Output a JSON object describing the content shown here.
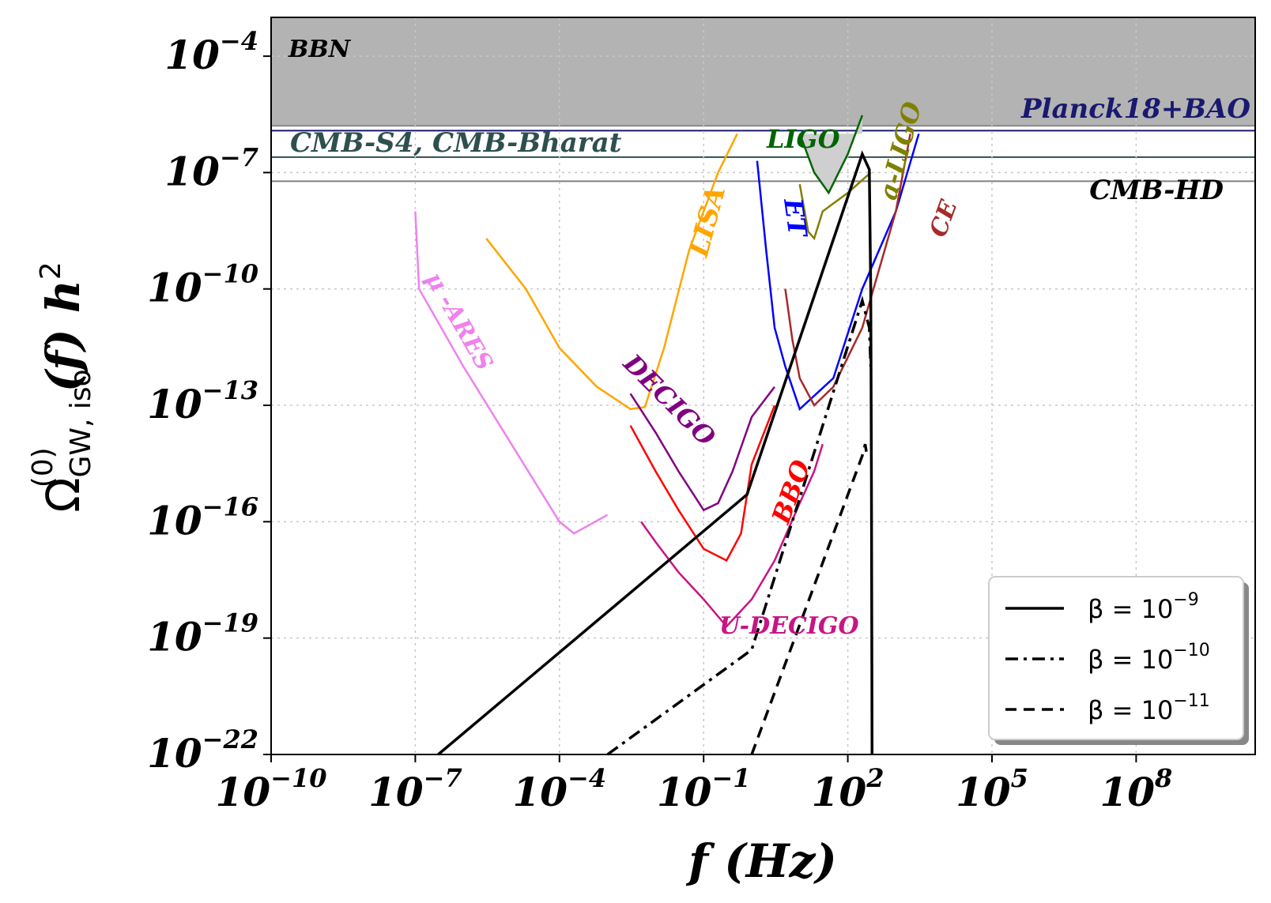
{
  "chart_data": {
    "type": "line",
    "xlabel": "f (Hz)",
    "ylabel_main": "Ω",
    "ylabel_sup": "(0)",
    "ylabel_sub": "GW, iso",
    "ylabel_tail": "(f) h",
    "ylabel_pow": "2",
    "x_scale": "log",
    "y_scale": "log",
    "xlim": [
      1e-10,
      30000000000.0
    ],
    "ylim": [
      1e-22,
      0.001
    ],
    "grid": true,
    "legend_position": "lower-right",
    "x_ticks": [
      {
        "base": "10",
        "exp": "−10",
        "value": 1e-10
      },
      {
        "base": "10",
        "exp": "−7",
        "value": 1e-07
      },
      {
        "base": "10",
        "exp": "−4",
        "value": 0.0001
      },
      {
        "base": "10",
        "exp": "−1",
        "value": 0.1
      },
      {
        "base": "10",
        "exp": "2",
        "value": 100.0
      },
      {
        "base": "10",
        "exp": "5",
        "value": 100000.0
      },
      {
        "base": "10",
        "exp": "8",
        "value": 100000000.0
      }
    ],
    "y_ticks": [
      {
        "base": "10",
        "exp": "−4",
        "value": 0.0001
      },
      {
        "base": "10",
        "exp": "−7",
        "value": 1e-07
      },
      {
        "base": "10",
        "exp": "−10",
        "value": 1e-10
      },
      {
        "base": "10",
        "exp": "−13",
        "value": 1e-13
      },
      {
        "base": "10",
        "exp": "−16",
        "value": 1e-16
      },
      {
        "base": "10",
        "exp": "−19",
        "value": 1e-19
      },
      {
        "base": "10",
        "exp": "−22",
        "value": 1e-22
      }
    ],
    "bounds": [
      {
        "label": "BBN",
        "type": "band",
        "y_lower": 1.6e-06,
        "color": "#b3b3b3"
      },
      {
        "label": "Planck18+BAO",
        "type": "hline",
        "y": 1.2e-06,
        "color": "#191970"
      },
      {
        "label": "CMB-S4, CMB-Bharat",
        "type": "hline",
        "y": 2.5e-07,
        "color": "#2f4f4f"
      },
      {
        "label": "CMB-HD",
        "type": "hline",
        "y": 6e-08,
        "color": "#808080"
      }
    ],
    "series": [
      {
        "name": "β = 10",
        "name_exp": "−9",
        "color": "#000000",
        "dash": "solid",
        "x": [
          3e-07,
          0.8,
          200,
          280,
          300,
          310,
          320
        ],
        "y": [
          1e-22,
          5e-16,
          3e-07,
          1.2e-07,
          1e-10,
          1e-15,
          1e-22
        ]
      },
      {
        "name": "β = 10",
        "name_exp": "−10",
        "color": "#000000",
        "dash": "dashdot",
        "x": [
          0.001,
          1.0,
          200,
          280,
          300
        ],
        "y": [
          1e-22,
          5e-20,
          5e-11,
          1e-11,
          1e-12
        ]
      },
      {
        "name": "β = 10",
        "name_exp": "−11",
        "color": "#000000",
        "dash": "dashed",
        "x": [
          1.0,
          200,
          230,
          250
        ],
        "y": [
          1e-22,
          5e-15,
          1e-14,
          5e-15
        ]
      }
    ],
    "detectors": [
      {
        "label": "LISA",
        "color": "#ffa500",
        "x": [
          3e-06,
          2e-05,
          0.0001,
          0.0006,
          0.003,
          0.006,
          0.015,
          0.05,
          0.2,
          0.5
        ],
        "y": [
          2e-09,
          1e-10,
          3e-12,
          3e-13,
          8e-14,
          9e-14,
          3e-12,
          1e-09,
          1e-07,
          1e-06
        ]
      },
      {
        "label": "μ-ARES",
        "color": "#ee82ee",
        "x": [
          1e-07,
          1.2e-07,
          1e-06,
          1e-05,
          0.0001,
          0.0002,
          0.001
        ],
        "y": [
          1e-08,
          1e-10,
          1e-12,
          1e-14,
          1e-16,
          5e-17,
          1.5e-16
        ]
      },
      {
        "label": "DECIGO",
        "color": "#800080",
        "x": [
          0.003,
          0.01,
          0.03,
          0.1,
          0.2,
          0.4,
          1.0,
          3.0
        ],
        "y": [
          2e-13,
          2e-14,
          2e-15,
          2e-16,
          3e-16,
          2e-15,
          5e-14,
          3e-13
        ]
      },
      {
        "label": "BBO",
        "color": "#ff0000",
        "x": [
          0.003,
          0.01,
          0.03,
          0.1,
          0.3,
          0.6,
          1.0,
          3.0
        ],
        "y": [
          3e-14,
          2e-15,
          2e-16,
          2e-17,
          1e-17,
          5e-17,
          3e-15,
          1e-13
        ]
      },
      {
        "label": "U-DECIGO",
        "color": "#c71585",
        "x": [
          0.005,
          0.01,
          0.03,
          0.1,
          0.3,
          1.0,
          3.0,
          10,
          20,
          30
        ],
        "y": [
          1e-16,
          3e-17,
          5e-18,
          1e-18,
          2e-19,
          1e-18,
          1e-17,
          3e-16,
          2e-15,
          1e-14
        ]
      },
      {
        "label": "ET",
        "color": "#0000ff",
        "x": [
          1.3,
          2,
          3,
          5,
          10,
          50,
          200,
          1000,
          3000
        ],
        "y": [
          2e-07,
          1e-09,
          1e-11,
          1e-12,
          8e-14,
          5e-13,
          1e-10,
          1e-08,
          1e-06
        ]
      },
      {
        "label": "CE",
        "color": "#a52a2a",
        "x": [
          5,
          7,
          10,
          20,
          50,
          200,
          1000,
          2000
        ],
        "y": [
          1e-10,
          5e-12,
          5e-13,
          1e-13,
          3e-13,
          1e-11,
          1e-08,
          1e-06
        ]
      },
      {
        "label": "LIGO",
        "color": "#006400",
        "x": [
          10,
          20,
          40,
          100,
          200
        ],
        "y": [
          1e-06,
          1e-07,
          3e-08,
          3e-07,
          3e-06
        ],
        "fill_upper": 1e-06
      },
      {
        "label": "a-LIGO",
        "color": "#808000",
        "x": [
          10,
          15,
          20,
          30,
          100,
          300
        ],
        "y": [
          5e-08,
          3e-09,
          2e-09,
          1e-08,
          3e-08,
          1e-07
        ]
      }
    ],
    "annotations": [
      {
        "text": "BBN",
        "color": "#000000"
      },
      {
        "text": "Planck18+BAO",
        "color": "#191970"
      },
      {
        "text": "CMB-S4, CMB-Bharat",
        "color": "#2f4f4f"
      },
      {
        "text": "CMB-HD",
        "color": "#000000"
      },
      {
        "text": "LISA",
        "color": "#ffa500"
      },
      {
        "text": "μ -ARES",
        "color": "#ee82ee"
      },
      {
        "text": "DECIGO",
        "color": "#800080"
      },
      {
        "text": "BBO",
        "color": "#ff0000"
      },
      {
        "text": "U-DECIGO",
        "color": "#c71585"
      },
      {
        "text": "ET",
        "color": "#0000ff"
      },
      {
        "text": "CE",
        "color": "#a52a2a"
      },
      {
        "text": "LIGO",
        "color": "#006400"
      },
      {
        "text": "a-LIGO",
        "color": "#808000"
      }
    ]
  }
}
